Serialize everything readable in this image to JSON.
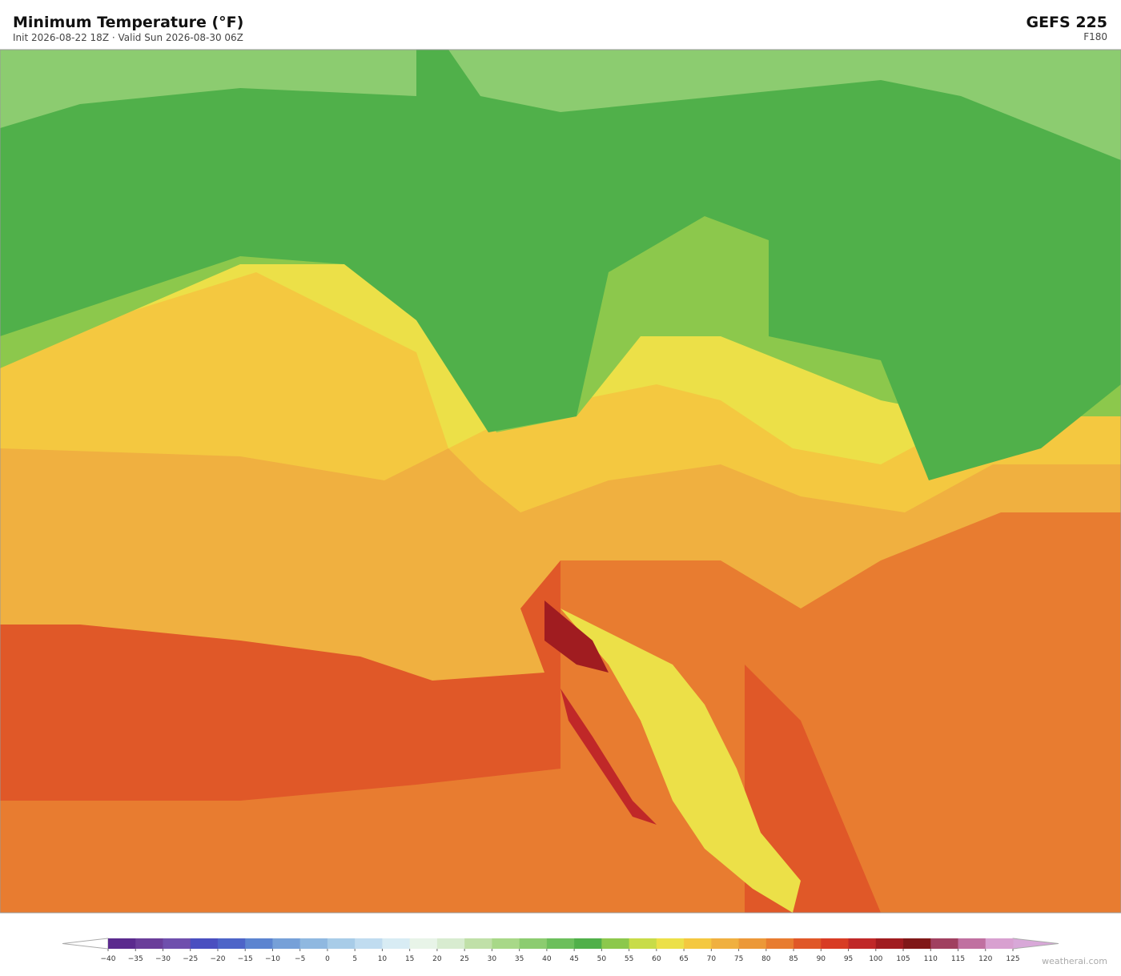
{
  "header": {
    "title": "Minimum Temperature  (°F)",
    "subtitle": "Init 2026-08-22 18Z  ·  Valid Sun 2026-08-30 06Z",
    "model": "GEFS  225",
    "forecast_hour": "F180"
  },
  "colorbar": {
    "ticks": [
      {
        "value": -40,
        "label": "−40"
      },
      {
        "value": -35,
        "label": "−35"
      },
      {
        "value": -30,
        "label": "−30"
      },
      {
        "value": -25,
        "label": "−25"
      },
      {
        "value": -20,
        "label": "−20"
      },
      {
        "value": -15,
        "label": "−15"
      },
      {
        "value": -10,
        "label": "−10"
      },
      {
        "value": -5,
        "label": "−5"
      },
      0,
      5,
      10,
      15,
      20,
      25,
      30,
      35,
      40,
      45,
      50,
      55,
      60,
      65,
      70,
      75,
      80,
      85,
      90,
      95,
      100,
      105,
      110,
      115,
      120,
      125
    ],
    "colors": [
      "#5b2a8e",
      "#6a3d9a",
      "#6f4fad",
      "#4a4fc0",
      "#4d64c8",
      "#5c84d0",
      "#76a0d8",
      "#8fb8e0",
      "#a8cce8",
      "#c0dcf0",
      "#d8ecf4",
      "#e8f4e8",
      "#d8ecd0",
      "#c0e0a8",
      "#a8d888",
      "#8ccc70",
      "#6cbf5c",
      "#50b04a",
      "#8cc84c",
      "#c8dc48",
      "#ece048",
      "#f4c840",
      "#f0b040",
      "#ec9838",
      "#e87c30",
      "#e05828",
      "#d83c24",
      "#c02828",
      "#a01c20",
      "#801818",
      "#a04060",
      "#c070a0",
      "#d8a0d0"
    ],
    "under_color": "#ffffff",
    "over_color": "#d8a8d8"
  },
  "watermark": "weatherai.com"
}
